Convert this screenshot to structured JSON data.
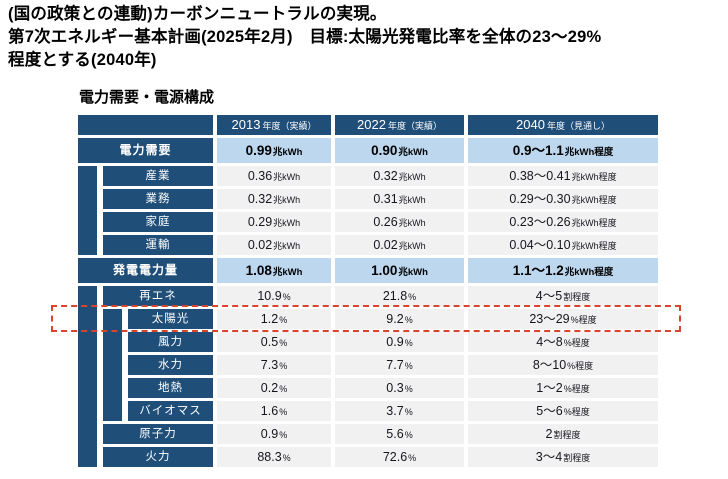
{
  "heading": {
    "line1": "(国の政策との連動)カーボンニュートラルの実現。",
    "line2": "第7次エネルギー基本計画(2025年2月)　目標:太陽光発電比率を全体の23〜29%",
    "line3": "程度とする(2040年)"
  },
  "table": {
    "title": "電力需要・電源構成",
    "columns": [
      {
        "year": "2013",
        "note": "年度（実績）"
      },
      {
        "year": "2022",
        "note": "年度（実績）"
      },
      {
        "year": "2040",
        "note": "年度（見通し）"
      }
    ],
    "rows": [
      {
        "key": "demand",
        "label": "電力需要",
        "level": 0,
        "emphasis": true,
        "values": [
          {
            "v": "0.99",
            "u": "兆kWh"
          },
          {
            "v": "0.90",
            "u": "兆kWh"
          },
          {
            "v": "0.9〜1.1",
            "u": "兆kWh程度"
          }
        ]
      },
      {
        "key": "industry",
        "label": "産業",
        "level": 1,
        "values": [
          {
            "v": "0.36",
            "u": "兆kWh"
          },
          {
            "v": "0.32",
            "u": "兆kWh"
          },
          {
            "v": "0.38〜0.41",
            "u": "兆kWh程度"
          }
        ]
      },
      {
        "key": "business",
        "label": "業務",
        "level": 1,
        "values": [
          {
            "v": "0.32",
            "u": "兆kWh"
          },
          {
            "v": "0.31",
            "u": "兆kWh"
          },
          {
            "v": "0.29〜0.30",
            "u": "兆kWh程度"
          }
        ]
      },
      {
        "key": "household",
        "label": "家庭",
        "level": 1,
        "values": [
          {
            "v": "0.29",
            "u": "兆kWh"
          },
          {
            "v": "0.26",
            "u": "兆kWh"
          },
          {
            "v": "0.23〜0.26",
            "u": "兆kWh程度"
          }
        ]
      },
      {
        "key": "transport",
        "label": "運輸",
        "level": 1,
        "values": [
          {
            "v": "0.02",
            "u": "兆kWh"
          },
          {
            "v": "0.02",
            "u": "兆kWh"
          },
          {
            "v": "0.04〜0.10",
            "u": "兆kWh程度"
          }
        ]
      },
      {
        "key": "generation",
        "label": "発電電力量",
        "level": 0,
        "emphasis": true,
        "values": [
          {
            "v": "1.08",
            "u": "兆kWh"
          },
          {
            "v": "1.00",
            "u": "兆kWh"
          },
          {
            "v": "1.1〜1.2",
            "u": "兆kWh程度"
          }
        ]
      },
      {
        "key": "renewable",
        "label": "再エネ",
        "level": 1,
        "values": [
          {
            "v": "10.9",
            "u": "%"
          },
          {
            "v": "21.8",
            "u": "%"
          },
          {
            "v": "4〜5",
            "u": "割程度"
          }
        ]
      },
      {
        "key": "solar",
        "label": "太陽光",
        "level": 2,
        "highlight": true,
        "values": [
          {
            "v": "1.2",
            "u": "%"
          },
          {
            "v": "9.2",
            "u": "%"
          },
          {
            "v": "23〜29",
            "u": "%程度"
          }
        ]
      },
      {
        "key": "wind",
        "label": "風力",
        "level": 2,
        "values": [
          {
            "v": "0.5",
            "u": "%"
          },
          {
            "v": "0.9",
            "u": "%"
          },
          {
            "v": "4〜8",
            "u": "%程度"
          }
        ]
      },
      {
        "key": "hydro",
        "label": "水力",
        "level": 2,
        "values": [
          {
            "v": "7.3",
            "u": "%"
          },
          {
            "v": "7.7",
            "u": "%"
          },
          {
            "v": "8〜10",
            "u": "%程度"
          }
        ]
      },
      {
        "key": "geothermal",
        "label": "地熱",
        "level": 2,
        "values": [
          {
            "v": "0.2",
            "u": "%"
          },
          {
            "v": "0.3",
            "u": "%"
          },
          {
            "v": "1〜2",
            "u": "%程度"
          }
        ]
      },
      {
        "key": "biomass",
        "label": "バイオマス",
        "level": 2,
        "values": [
          {
            "v": "1.6",
            "u": "%"
          },
          {
            "v": "3.7",
            "u": "%"
          },
          {
            "v": "5〜6",
            "u": "%程度"
          }
        ]
      },
      {
        "key": "nuclear",
        "label": "原子力",
        "level": 1,
        "values": [
          {
            "v": "0.9",
            "u": "%"
          },
          {
            "v": "5.6",
            "u": "%"
          },
          {
            "v": "2",
            "u": "割程度"
          }
        ]
      },
      {
        "key": "thermal",
        "label": "火力",
        "level": 1,
        "values": [
          {
            "v": "88.3",
            "u": "%"
          },
          {
            "v": "72.6",
            "u": "%"
          },
          {
            "v": "3〜4",
            "u": "割程度"
          }
        ]
      }
    ]
  },
  "colors": {
    "navy": "#1F4E79",
    "light_blue": "#BDD7EE",
    "row_gray": "#F1F1F1",
    "highlight_red": "#D9442C"
  }
}
